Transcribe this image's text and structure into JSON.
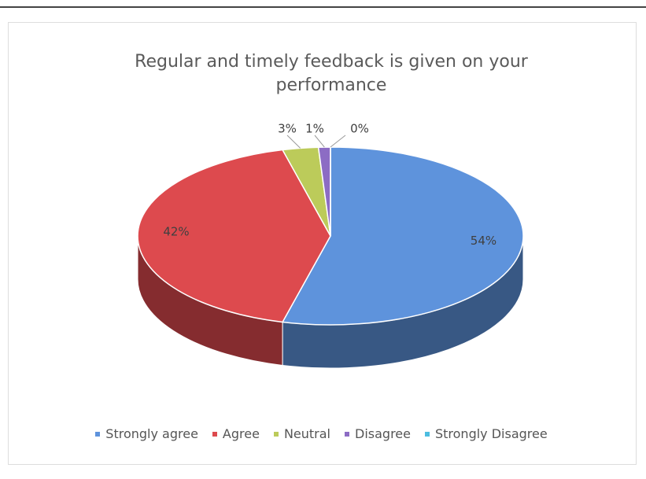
{
  "chart_data": {
    "type": "pie",
    "title": "Regular and timely feedback is given on your performance",
    "categories": [
      "Strongly agree",
      "Agree",
      "Neutral",
      "Disagree",
      "Strongly Disagree"
    ],
    "values": [
      54,
      42,
      3,
      1,
      0
    ],
    "value_labels": [
      "54%",
      "42%",
      "3%",
      "1%",
      "0%"
    ],
    "colors": [
      "#5e93dc",
      "#dd4a4e",
      "#bccb5a",
      "#8c6cc4",
      "#4cbde0"
    ],
    "legend": "bottom",
    "three_d": true
  }
}
